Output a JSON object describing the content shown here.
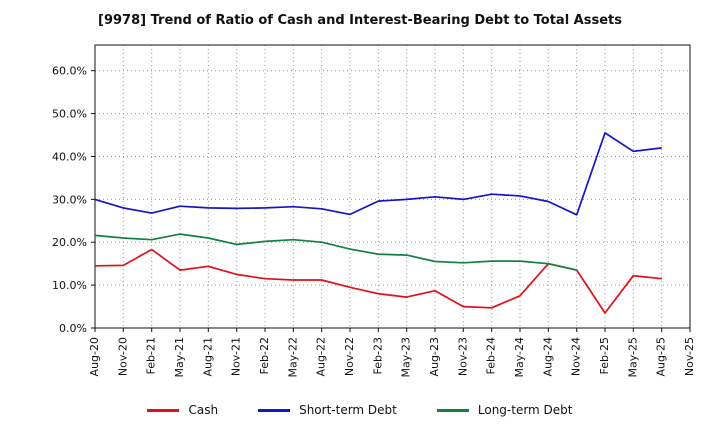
{
  "title": "[9978]  Trend of Ratio of Cash and Interest-Bearing Debt to Total Assets",
  "chart_data": {
    "type": "line",
    "categories": [
      "Aug-20",
      "Nov-20",
      "Feb-21",
      "May-21",
      "Aug-21",
      "Nov-21",
      "Feb-22",
      "May-22",
      "Aug-22",
      "Nov-22",
      "Feb-23",
      "May-23",
      "Aug-23",
      "Nov-23",
      "Feb-24",
      "May-24",
      "Aug-24",
      "Nov-24",
      "Feb-25",
      "May-25",
      "Aug-25",
      "Nov-25"
    ],
    "series": [
      {
        "name": "Cash",
        "color": "#e01018",
        "values": [
          14.5,
          14.6,
          18.3,
          13.5,
          14.4,
          12.5,
          11.5,
          11.2,
          11.2,
          9.5,
          8.0,
          7.2,
          8.7,
          5.0,
          4.7,
          7.5,
          15.0,
          13.5,
          3.5,
          12.2,
          11.5
        ]
      },
      {
        "name": "Short-term Debt",
        "color": "#1414c8",
        "values": [
          30.0,
          28.0,
          26.8,
          28.4,
          28.0,
          27.9,
          28.0,
          28.3,
          27.8,
          26.5,
          29.6,
          30.0,
          30.6,
          30.0,
          31.2,
          30.8,
          29.5,
          26.4,
          45.5,
          41.2,
          42.0
        ]
      },
      {
        "name": "Long-term Debt",
        "color": "#138040",
        "values": [
          21.6,
          21.0,
          20.6,
          21.9,
          21.0,
          19.5,
          20.2,
          20.6,
          20.0,
          18.4,
          17.2,
          17.0,
          15.5,
          15.2,
          15.6,
          15.6,
          15.0,
          13.5
        ]
      }
    ],
    "ylabel": "",
    "xlabel": "",
    "ylim": [
      0,
      66
    ],
    "yticks": [
      0,
      10,
      20,
      30,
      40,
      50,
      60
    ],
    "ytick_format": "percent_one_decimal",
    "grid": true,
    "legend_position": "bottom"
  }
}
